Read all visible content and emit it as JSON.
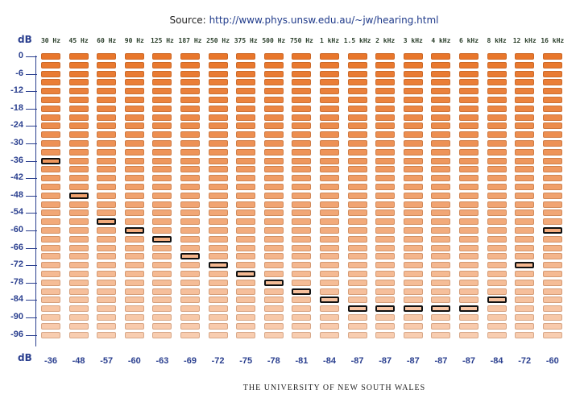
{
  "source": {
    "prefix": "Source:",
    "url": "http://www.phys.unsw.edu.au/~jw/hearing.html"
  },
  "axis_unit": "dB",
  "frequencies": [
    "30 Hz",
    "45 Hz",
    "60 Hz",
    "90 Hz",
    "125 Hz",
    "187 Hz",
    "250 Hz",
    "375 Hz",
    "500 Hz",
    "750 Hz",
    "1 kHz",
    "1.5 kHz",
    "2 kHz",
    "3 kHz",
    "4 kHz",
    "6 kHz",
    "8 kHz",
    "12 kHz",
    "16 kHz"
  ],
  "y_ticks": [
    "0",
    "-6",
    "-12",
    "-18",
    "-24",
    "-30",
    "-36",
    "-42",
    "-48",
    "-54",
    "-60",
    "-66",
    "-72",
    "-78",
    "-84",
    "-90",
    "-96"
  ],
  "thresholds": [
    "-36",
    "-48",
    "-57",
    "-60",
    "-63",
    "-69",
    "-72",
    "-75",
    "-78",
    "-81",
    "-84",
    "-87",
    "-87",
    "-87",
    "-87",
    "-87",
    "-84",
    "-72",
    "-60"
  ],
  "chart_data": {
    "type": "heatmap",
    "x": [
      "30 Hz",
      "45 Hz",
      "60 Hz",
      "90 Hz",
      "125 Hz",
      "187 Hz",
      "250 Hz",
      "375 Hz",
      "500 Hz",
      "750 Hz",
      "1 kHz",
      "1.5 kHz",
      "2 kHz",
      "3 kHz",
      "4 kHz",
      "6 kHz",
      "8 kHz",
      "12 kHz",
      "16 kHz"
    ],
    "values": [
      -36,
      -48,
      -57,
      -60,
      -63,
      -69,
      -72,
      -75,
      -78,
      -81,
      -84,
      -87,
      -87,
      -87,
      -87,
      -87,
      -84,
      -72,
      -60
    ],
    "ylabel": "dB",
    "ylim": [
      -99,
      0
    ],
    "step": 3
  },
  "colors": {
    "top": "#E8762B",
    "bottom": "#F8CDB0",
    "axis": "#2a3f8f"
  },
  "footer": "THE UNIVERSITY OF NEW SOUTH WALES"
}
